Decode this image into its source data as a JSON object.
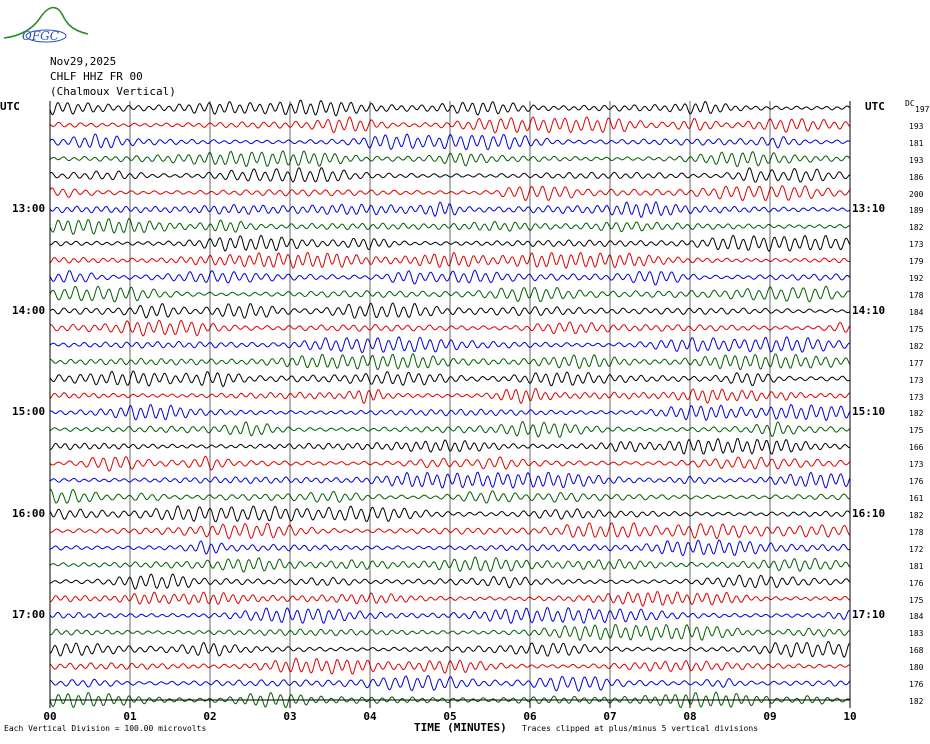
{
  "header": {
    "logo_text": "OFGC",
    "date": "Nov29,2025",
    "station": "CHLF HHZ FR 00",
    "station_name": "(Chalmoux Vertical)"
  },
  "left_axis": {
    "title": "UTC",
    "labels": [
      "13:00",
      "14:00",
      "15:00",
      "16:00",
      "17:00"
    ]
  },
  "right_axis": {
    "title": "UTC",
    "labels": [
      "13:10",
      "14:10",
      "15:10",
      "16:10",
      "17:10"
    ]
  },
  "dc_title": "DC",
  "dc_values": [
    "197",
    "193",
    "181",
    "193",
    "186",
    "200",
    "189",
    "182",
    "173",
    "179",
    "192",
    "178",
    "184",
    "175",
    "182",
    "177",
    "173",
    "173",
    "182",
    "175",
    "166",
    "173",
    "176",
    "161",
    "182",
    "178",
    "172",
    "181",
    "176",
    "175",
    "184",
    "183",
    "168",
    "180",
    "176",
    "182"
  ],
  "footer": {
    "left": "Each Vertical Division =  100.00 microvolts",
    "right": "Traces clipped at plus/minus 5 vertical divisions"
  },
  "colors": {
    "trace_cycle": [
      "#000000",
      "#e00000",
      "#0000e0",
      "#006000"
    ],
    "grid": "#000000"
  },
  "chart_data": {
    "type": "line",
    "title": "",
    "xlabel": "TIME (MINUTES)",
    "ylabel": "",
    "x_ticks": [
      "00",
      "01",
      "02",
      "03",
      "04",
      "05",
      "06",
      "07",
      "08",
      "09",
      "10"
    ],
    "xlim": [
      0,
      10
    ],
    "row_count": 36,
    "row_interval_minutes": 10,
    "first_row_start_utc": "12:00",
    "hour_labels_rows": [
      6,
      12,
      18,
      24,
      30
    ],
    "grid": true
  }
}
